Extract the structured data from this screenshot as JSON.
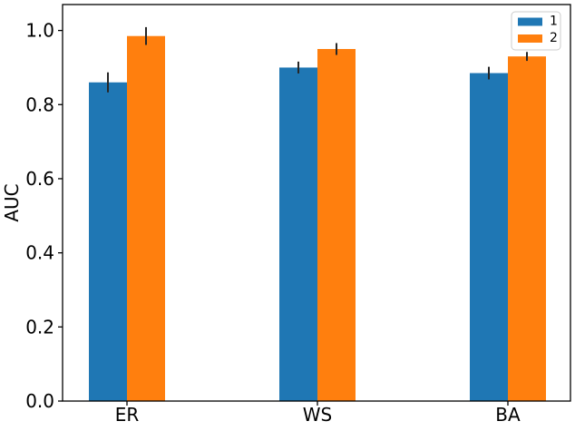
{
  "chart_data": {
    "type": "bar",
    "title": "",
    "xlabel": "",
    "ylabel": "AUC",
    "categories": [
      "ER",
      "WS",
      "BA"
    ],
    "series": [
      {
        "name": "1",
        "color": "#1f77b4",
        "values": [
          0.86,
          0.9,
          0.885
        ],
        "errors": [
          0.027,
          0.016,
          0.017
        ]
      },
      {
        "name": "2",
        "color": "#ff7f0e",
        "values": [
          0.985,
          0.95,
          0.93
        ],
        "errors": [
          0.024,
          0.016,
          0.012
        ]
      }
    ],
    "ylim": [
      0.0,
      1.07
    ],
    "yticks": [
      0.0,
      0.2,
      0.4,
      0.6,
      0.8,
      1.0
    ],
    "ytick_labels": [
      "0.0",
      "0.2",
      "0.4",
      "0.6",
      "0.8",
      "1.0"
    ],
    "error_bar_color": "#262626",
    "legend": {
      "position": "upper right",
      "labels": [
        "1",
        "2"
      ]
    },
    "grid": false
  }
}
